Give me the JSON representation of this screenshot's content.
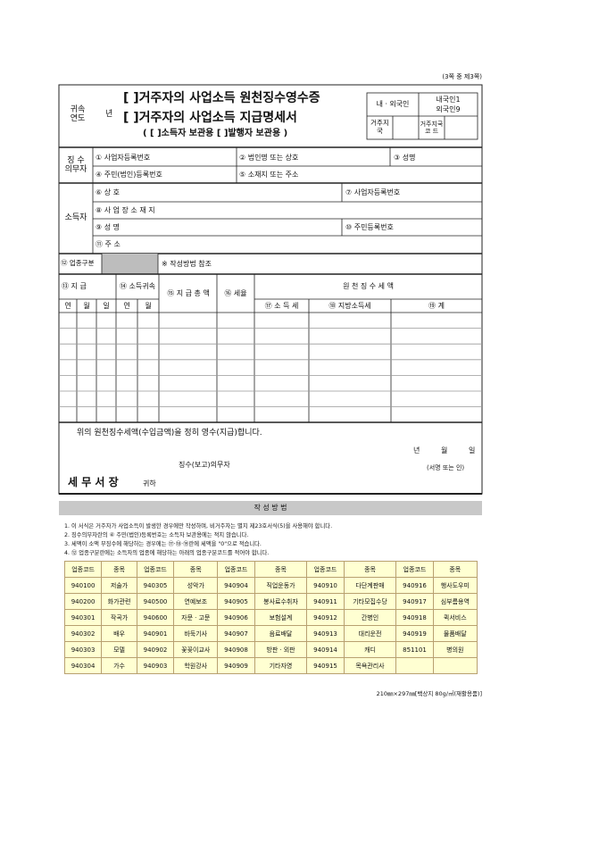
{
  "page_label": "(3쪽 중 제3쪽)",
  "header": {
    "year_label": "귀속 연도",
    "year_unit": "년",
    "title1": "[ ]거주자의 사업소득 원천징수영수증",
    "title2": "[ ]거주자의 사업소득 지급명세서",
    "subtitle": "( [ ]소득자 보관용 [ ]발행자 보관용 )",
    "nationality_label": "내ㆍ외국인",
    "nationality_options": [
      "내국인1",
      "외국인9"
    ],
    "residence_label": "거주지국",
    "residence_code_label": "거주지국 코 드"
  },
  "withholder": {
    "label": "징 수 의무자",
    "fields": [
      "① 사업자등록번호",
      "② 법인명 또는 상호",
      "③ 성명",
      "④ 주민(법인)등록번호",
      "⑤ 소재지 또는 주소"
    ]
  },
  "earner": {
    "label": "소득자",
    "fields": [
      "⑥ 상 호",
      "⑦ 사업자등록번호",
      "⑧ 사 업 장 소 재 지",
      "⑨ 성 명",
      "⑩ 주민등록번호",
      "⑪ 주 소"
    ]
  },
  "industry": {
    "label": "⑫ 업종구분",
    "note": "※ 작성방법 참조"
  },
  "payment_table": {
    "payment_date": "⑬ 지 급",
    "income_period": "⑭ 소득귀속",
    "total": "⑮ 지 급 총 액",
    "rate": "⑯ 세율",
    "withheld": "원 천 징 수 세 액",
    "date_parts": [
      "연",
      "월",
      "일"
    ],
    "period_parts": [
      "연",
      "월"
    ],
    "tax_columns": [
      "⑰ 소 득 세",
      "⑱ 지방소득세",
      "⑲ 계"
    ]
  },
  "receipt": {
    "statement": "위의 원천징수세액(수입금액)을 정히 영수(지급)합니다.",
    "date_parts": [
      "년",
      "월",
      "일"
    ],
    "reporter": "징수(보고)의무자",
    "signature": "(서명 또는 인)",
    "addressee": "세 무 서 장",
    "honorific": "귀하"
  },
  "instructions": {
    "title": "작 성 방 법",
    "notes": [
      "1. 이 서식은 거주자가 사업소득이 발생한 경우에만 작성하며, 비거주자는 별지 제23호서식(5)을 사용해야 합니다.",
      "2. 징수의무자란의 ④ 주민(법인)등록번호는 소득자 보관용에는 적지 않습니다.",
      "3. 세액이 소액 부징수에 해당하는 경우에는 ⑰·⑱·⑲란에 세액을 \"0\"으로 적습니다.",
      "4. ⑫ 업종구분란에는 소득자의 업종에 해당하는 아래의 업종구분코드를 적어야 합니다."
    ]
  },
  "code_table": {
    "headers": [
      "업종코드",
      "종목"
    ],
    "rows": [
      [
        "940100",
        "저술가",
        "940305",
        "성악가",
        "940904",
        "직업운동가",
        "940910",
        "다단계판매",
        "940916",
        "행사도우미"
      ],
      [
        "940200",
        "화가관련",
        "940500",
        "연예보조",
        "940905",
        "봉사료수취자",
        "940911",
        "기타모집수당",
        "940917",
        "심부름용역"
      ],
      [
        "940301",
        "작곡가",
        "940600",
        "자문ㆍ고문",
        "940906",
        "보험설계",
        "940912",
        "간병인",
        "940918",
        "퀵서비스"
      ],
      [
        "940302",
        "배우",
        "940901",
        "바둑기사",
        "940907",
        "음료배달",
        "940913",
        "대리운전",
        "940919",
        "물품배달"
      ],
      [
        "940303",
        "모델",
        "940902",
        "꽃꽂이교사",
        "940908",
        "방판ㆍ외판",
        "940914",
        "캐디",
        "851101",
        "병의원"
      ],
      [
        "940304",
        "가수",
        "940903",
        "학원강사",
        "940909",
        "기타자영",
        "940915",
        "목욕관리사"
      ]
    ]
  },
  "footer": "210㎜×297㎜[백상지 80g/㎡(재활용품)]"
}
